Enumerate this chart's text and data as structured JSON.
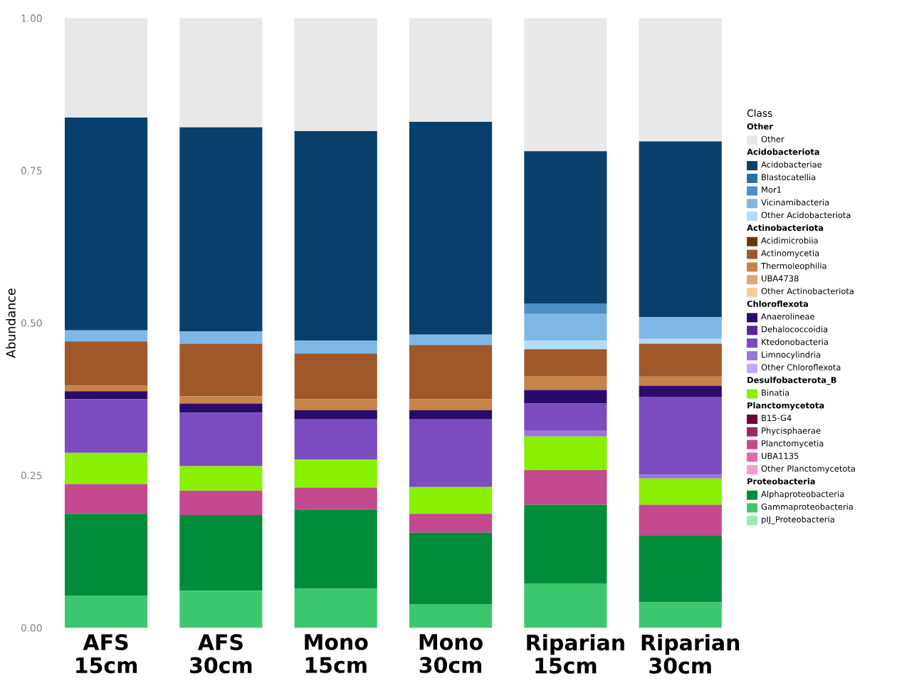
{
  "chart_data": {
    "type": "bar",
    "stacked": true,
    "ylabel": "Abundance",
    "legend_title": "Class",
    "legend": "right",
    "categories": [
      "AFS 15cm",
      "AFS 30cm",
      "Mono 15cm",
      "Mono 30cm",
      "Riparian 15cm",
      "Riparian 30cm"
    ],
    "ylim": [
      0,
      1
    ],
    "yticks": [
      {
        "value": 0,
        "label": "0.00"
      },
      {
        "value": 0.25,
        "label": "0.25"
      },
      {
        "value": 0.5,
        "label": "0.50"
      },
      {
        "value": 0.75,
        "label": "0.75"
      },
      {
        "value": 1,
        "label": "1.00"
      }
    ],
    "annotations": [
      "Other",
      "Acidobacteriota",
      "Actinobacteriota",
      "Chloroflexota",
      "Desulfobacterota_B",
      "Planctomycetota",
      "Proteobacteria"
    ],
    "series": [
      {
        "name": "pIJ_Proteobacteria",
        "color": "#8ef0b0",
        "values": [
          0,
          0,
          0,
          0,
          0,
          0
        ]
      },
      {
        "name": "Gammaproteobacteria",
        "color": "#3cc76f",
        "values": [
          0.053,
          0.061,
          0.064,
          0.039,
          0.073,
          0.042
        ]
      },
      {
        "name": "Alphaproteobacteria",
        "color": "#008c3a",
        "values": [
          0.134,
          0.124,
          0.13,
          0.117,
          0.129,
          0.11
        ]
      },
      {
        "name": "Other Planctomycetota",
        "color": "#f79ad2",
        "values": [
          0,
          0,
          0,
          0,
          0,
          0
        ]
      },
      {
        "name": "UBA1135",
        "color": "#e06bb0",
        "values": [
          0,
          0,
          0,
          0,
          0,
          0
        ]
      },
      {
        "name": "Planctomycetia",
        "color": "#c4498e",
        "values": [
          0.049,
          0.04,
          0.036,
          0.031,
          0.057,
          0.05
        ]
      },
      {
        "name": "Phycisphaerae",
        "color": "#9c2660",
        "values": [
          0,
          0,
          0,
          0,
          0,
          0
        ]
      },
      {
        "name": "B15-G4",
        "color": "#6b0035",
        "values": [
          0,
          0,
          0,
          0,
          0,
          0
        ]
      },
      {
        "name": "Binatia",
        "color": "#88f000",
        "values": [
          0.051,
          0.04,
          0.046,
          0.044,
          0.055,
          0.043
        ]
      },
      {
        "name": "Other Chloroflexota",
        "color": "#c3a8ef",
        "values": [
          0,
          0,
          0,
          0,
          0,
          0
        ]
      },
      {
        "name": "Limnocylindria",
        "color": "#9a74d6",
        "values": [
          0,
          0,
          0,
          0,
          0.01,
          0.006
        ]
      },
      {
        "name": "Ktedonobacteria",
        "color": "#7b4cc0",
        "values": [
          0.088,
          0.088,
          0.066,
          0.111,
          0.044,
          0.128
        ]
      },
      {
        "name": "Dehalococcoidia",
        "color": "#55289b",
        "values": [
          0,
          0,
          0,
          0,
          0,
          0
        ]
      },
      {
        "name": "Anaerolineae",
        "color": "#2a0a6b",
        "values": [
          0.013,
          0.015,
          0.015,
          0.015,
          0.022,
          0.018
        ]
      },
      {
        "name": "Other Actinobacteriota",
        "color": "#f7cc9c",
        "values": [
          0,
          0,
          0,
          0,
          0,
          0
        ]
      },
      {
        "name": "UBA4738",
        "color": "#e0a673",
        "values": [
          0,
          0,
          0,
          0,
          0,
          0
        ]
      },
      {
        "name": "Thermoleophilia",
        "color": "#c6834a",
        "values": [
          0.009,
          0.012,
          0.018,
          0.018,
          0.023,
          0.015
        ]
      },
      {
        "name": "Actinomycetia",
        "color": "#a0582a",
        "values": [
          0.073,
          0.086,
          0.075,
          0.089,
          0.044,
          0.054
        ]
      },
      {
        "name": "Acidimicrobiia",
        "color": "#6b3410",
        "values": [
          0,
          0,
          0,
          0,
          0,
          0
        ]
      },
      {
        "name": "Other Acidobacteriota",
        "color": "#b5dcf7",
        "values": [
          0,
          0,
          0,
          0,
          0.014,
          0.008
        ]
      },
      {
        "name": "Vicinamibacteria",
        "color": "#7fb8e6",
        "values": [
          0.018,
          0.02,
          0.021,
          0.017,
          0.044,
          0.036
        ]
      },
      {
        "name": "Mor1",
        "color": "#4f8fc7",
        "values": [
          0,
          0,
          0,
          0,
          0.017,
          0
        ]
      },
      {
        "name": "Blastocatellia",
        "color": "#2a6fa6",
        "values": [
          0,
          0,
          0,
          0,
          0,
          0
        ]
      },
      {
        "name": "Acidobacteriae",
        "color": "#08406b",
        "values": [
          0.349,
          0.335,
          0.344,
          0.349,
          0.25,
          0.288
        ]
      },
      {
        "name": "Other",
        "color": "#e8e8e8",
        "values": [
          0.163,
          0.179,
          0.185,
          0.17,
          0.218,
          0.202
        ]
      }
    ]
  }
}
